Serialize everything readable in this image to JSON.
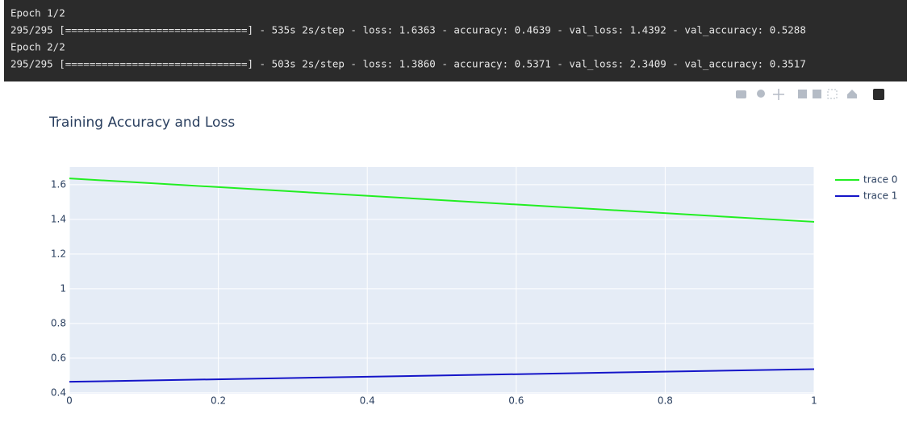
{
  "console": {
    "lines": [
      "Epoch 1/2",
      "295/295 [==============================] - 535s 2s/step - loss: 1.6363 - accuracy: 0.4639 - val_loss: 1.4392 - val_accuracy: 0.5288",
      "Epoch 2/2",
      "295/295 [==============================] - 503s 2s/step - loss: 1.3860 - accuracy: 0.5371 - val_loss: 2.3409 - val_accuracy: 0.3517"
    ]
  },
  "chart_data": {
    "type": "line",
    "title": "Training Accuracy and Loss",
    "x": [
      0,
      1
    ],
    "series": [
      {
        "name": "trace 0",
        "color": "#22ee22",
        "values": [
          1.6363,
          1.386
        ]
      },
      {
        "name": "trace 1",
        "color": "#1515c8",
        "values": [
          0.4639,
          0.5371
        ]
      }
    ],
    "xlim": [
      0,
      1
    ],
    "xticks": [
      0,
      0.2,
      0.4,
      0.6,
      0.8,
      1
    ],
    "ylim": [
      0.395,
      1.702
    ],
    "yticks": [
      0.4,
      0.6,
      0.8,
      1,
      1.2,
      1.4,
      1.6
    ],
    "grid": true,
    "legend": "right"
  }
}
